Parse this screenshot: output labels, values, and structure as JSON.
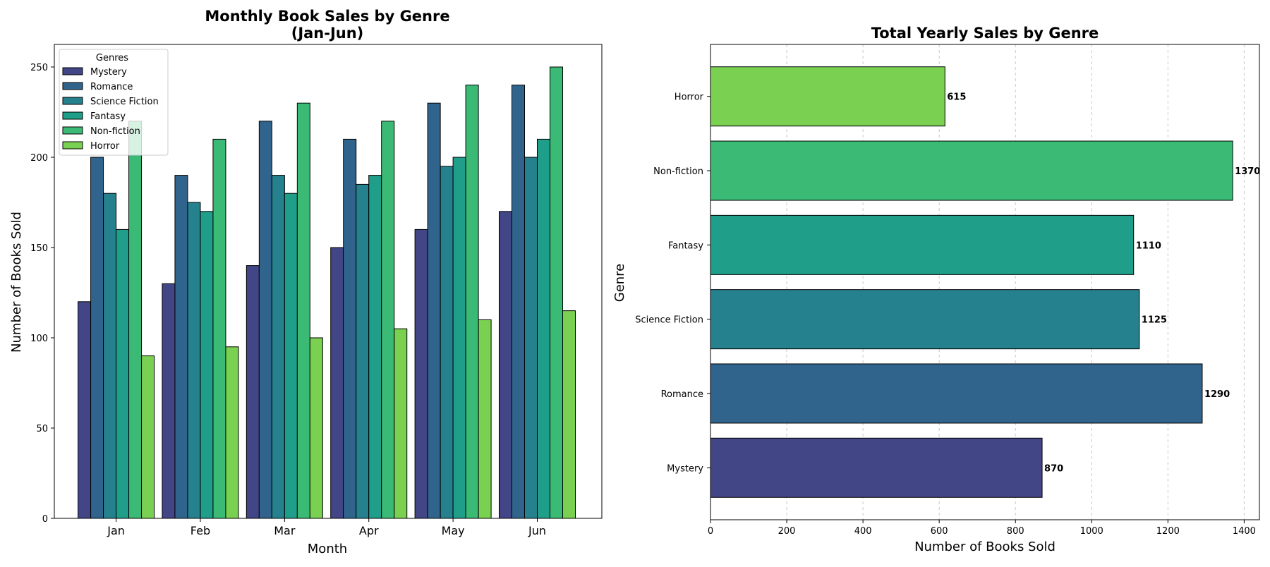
{
  "colors": {
    "Mystery": "#424686",
    "Romance": "#31648d",
    "Science Fiction": "#26818e",
    "Fantasy": "#1f9e89",
    "Non-fiction": "#3bba75",
    "Horror": "#7ad151",
    "edge": "#000000",
    "grid": "#c8c8c8"
  },
  "chart_data": [
    {
      "type": "bar",
      "title_line1": "Monthly Book Sales by Genre",
      "title_line2": "(Jan-Jun)",
      "xlabel": "Month",
      "ylabel": "Number of Books Sold",
      "categories": [
        "Jan",
        "Feb",
        "Mar",
        "Apr",
        "May",
        "Jun"
      ],
      "ylim": [
        0,
        262.5
      ],
      "yticks": [
        0,
        50,
        100,
        150,
        200,
        250
      ],
      "legend_title": "Genres",
      "legend_position": "top-left",
      "grid": false,
      "series": [
        {
          "name": "Mystery",
          "values": [
            120,
            130,
            140,
            150,
            160,
            170
          ]
        },
        {
          "name": "Romance",
          "values": [
            200,
            190,
            220,
            210,
            230,
            240
          ]
        },
        {
          "name": "Science Fiction",
          "values": [
            180,
            175,
            190,
            185,
            195,
            200
          ]
        },
        {
          "name": "Fantasy",
          "values": [
            160,
            170,
            180,
            190,
            200,
            210
          ]
        },
        {
          "name": "Non-fiction",
          "values": [
            220,
            210,
            230,
            220,
            240,
            250
          ]
        },
        {
          "name": "Horror",
          "values": [
            90,
            95,
            100,
            105,
            110,
            115
          ]
        }
      ]
    },
    {
      "type": "bar",
      "orientation": "horizontal",
      "title": "Total Yearly Sales by Genre",
      "xlabel": "Number of Books Sold",
      "ylabel": "Genre",
      "categories": [
        "Mystery",
        "Romance",
        "Science Fiction",
        "Fantasy",
        "Non-fiction",
        "Horror"
      ],
      "values": [
        870,
        1290,
        1125,
        1110,
        1370,
        615
      ],
      "data_labels": [
        "870",
        "1290",
        "1125",
        "1110",
        "1370",
        "615"
      ],
      "xlim": [
        0,
        1440
      ],
      "xticks": [
        0,
        200,
        400,
        600,
        800,
        1000,
        1200,
        1400
      ],
      "grid": "x, dashed"
    }
  ]
}
